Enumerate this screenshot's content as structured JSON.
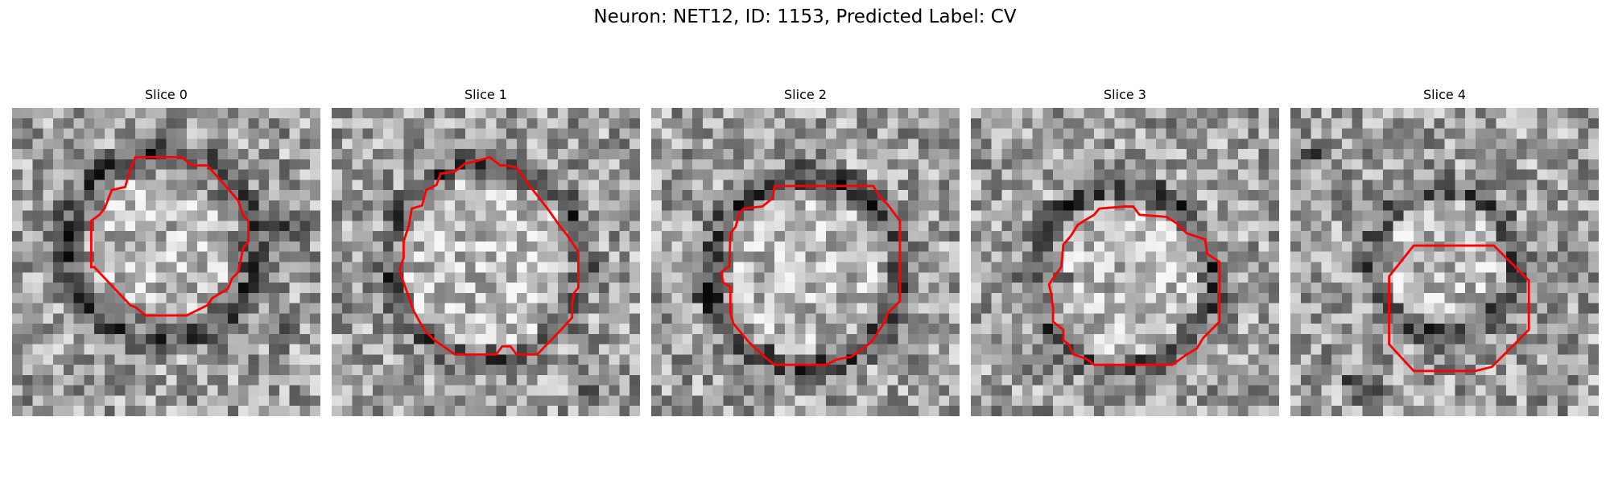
{
  "figure": {
    "title": "Neuron: NET12, ID: 1153, Predicted Label: CV",
    "contour_color": "#ff0000"
  },
  "panels": [
    {
      "title": "Slice 0",
      "seed": 11,
      "dark_spots": []
    },
    {
      "title": "Slice 1",
      "seed": 23,
      "dark_spots": []
    },
    {
      "title": "Slice 2",
      "seed": 37,
      "dark_spots": []
    },
    {
      "title": "Slice 3",
      "seed": 41,
      "dark_spots": []
    },
    {
      "title": "Slice 4",
      "seed": 53,
      "dark_spots": []
    }
  ]
}
